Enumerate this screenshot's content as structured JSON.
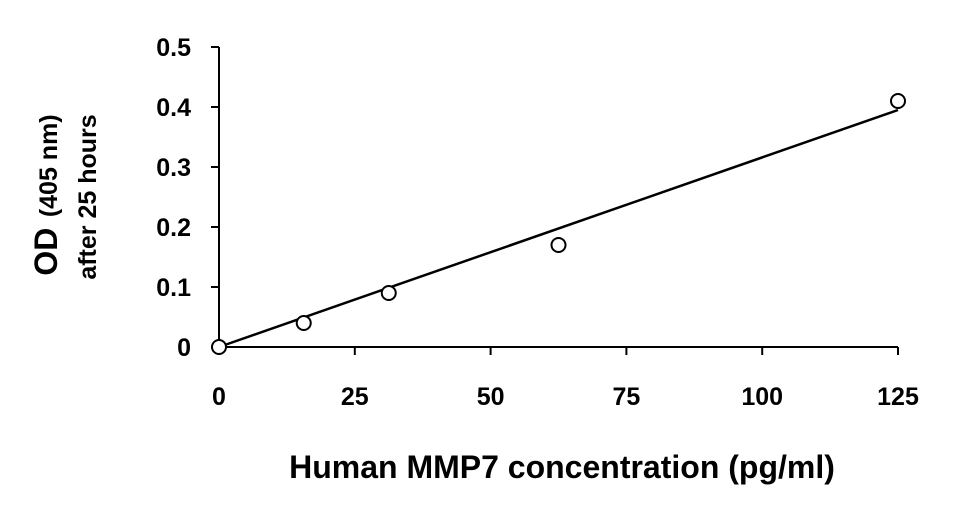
{
  "chart_data": {
    "type": "scatter",
    "x": [
      0,
      15.6,
      31.25,
      62.5,
      125
    ],
    "y": [
      0,
      0.04,
      0.09,
      0.17,
      0.41
    ],
    "trendline": {
      "type": "linear",
      "x": [
        0,
        125
      ],
      "y": [
        0,
        0.395
      ]
    },
    "xlabel": "Human MMP7 concentration (pg/ml)",
    "ylabel_main": "OD",
    "ylabel_unit": "(405 nm)",
    "ylabel_line2": "after 25 hours",
    "xlim": [
      0,
      125
    ],
    "ylim": [
      0,
      0.5
    ],
    "xticks": [
      "0",
      "25",
      "50",
      "75",
      "100",
      "125"
    ],
    "yticks": [
      "0",
      "0.1",
      "0.2",
      "0.3",
      "0.4",
      "0.5"
    ],
    "grid": false,
    "marker": "open-circle",
    "colors": {
      "axis": "#000000",
      "marker_fill": "#ffffff",
      "line": "#000000"
    }
  }
}
